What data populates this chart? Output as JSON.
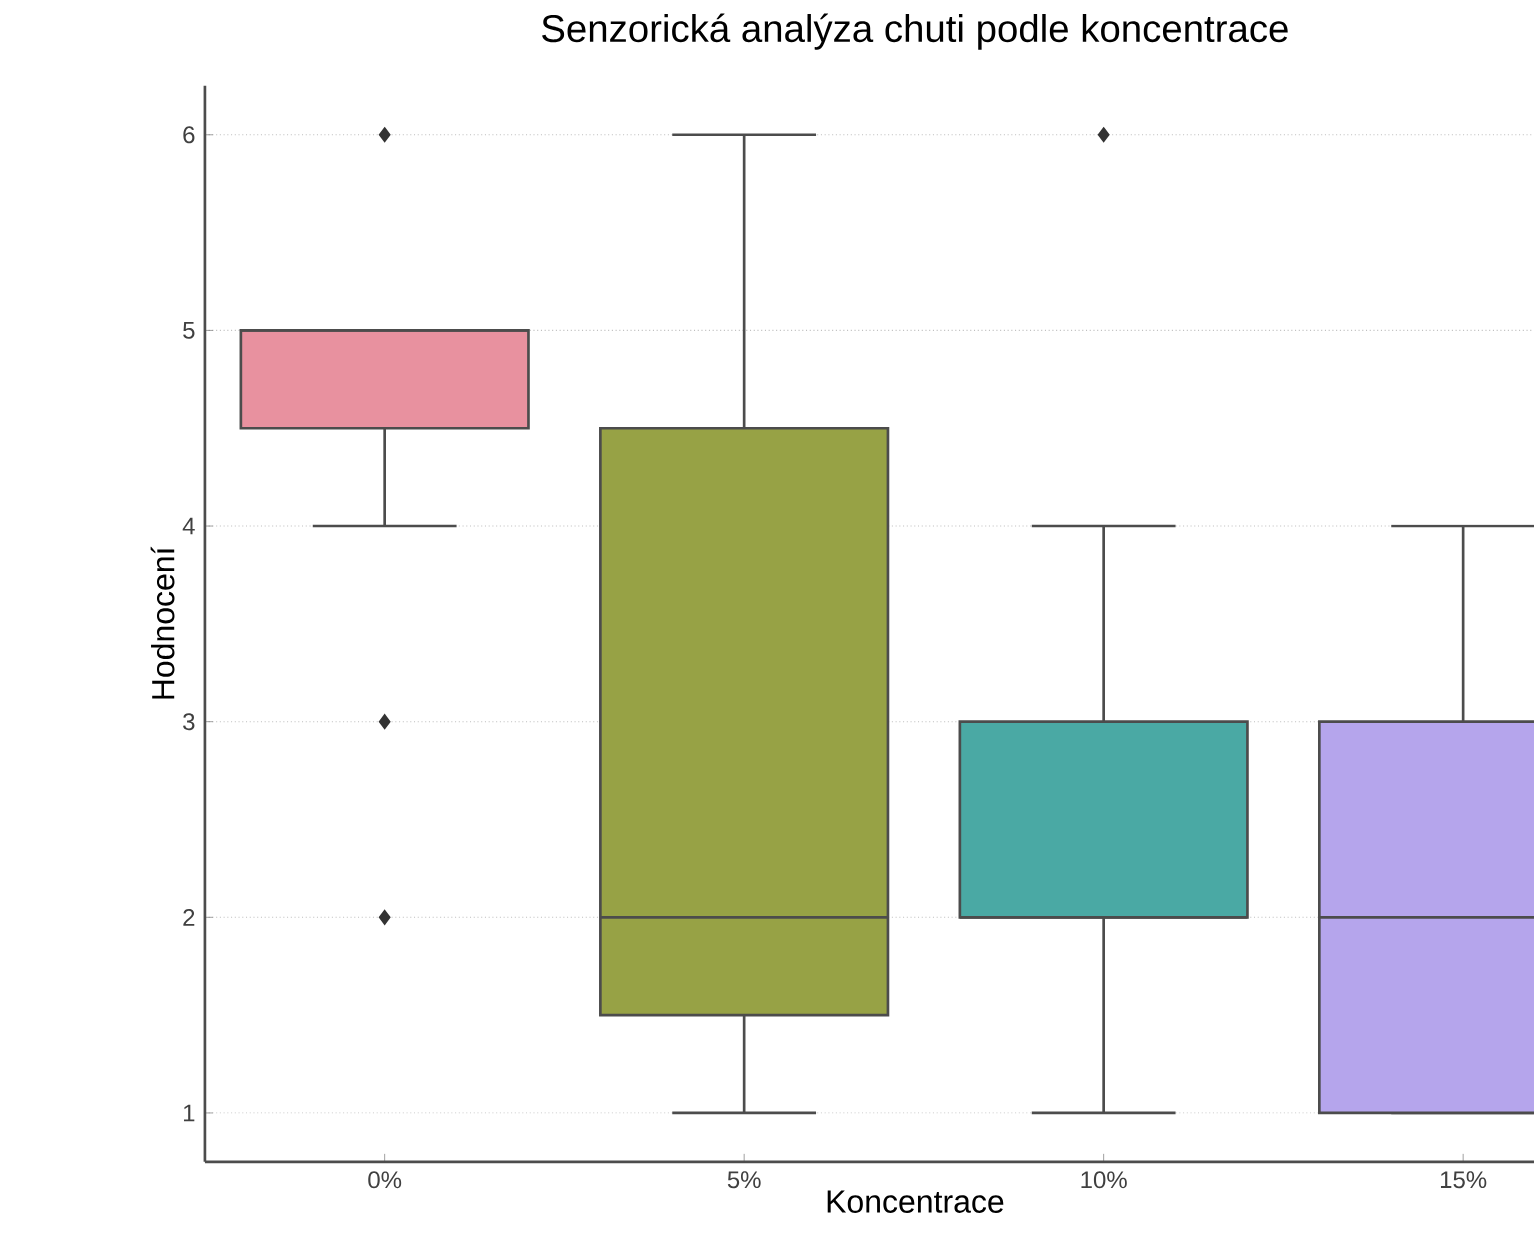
{
  "chart_data": {
    "type": "box",
    "title": "Senzorická analýza chuti podle koncentrace",
    "xlabel": "Koncentrace",
    "ylabel": "Hodnocení",
    "categories": [
      "0%",
      "5%",
      "10%",
      "15%"
    ],
    "colors": [
      "#e8919f",
      "#97a245",
      "#4aa9a4",
      "#b5a5ec"
    ],
    "boxes": [
      {
        "low": 4,
        "q1": 4.5,
        "median": 5,
        "q3": 5,
        "high": 5,
        "outliers": [
          6,
          3,
          2
        ]
      },
      {
        "low": 1,
        "q1": 1.5,
        "median": 2,
        "q3": 4.5,
        "high": 6
      },
      {
        "low": 1,
        "q1": 2,
        "median": 2,
        "q3": 3,
        "high": 4,
        "outliers": [
          6
        ]
      },
      {
        "low": 1,
        "q1": 1,
        "median": 2,
        "q3": 3,
        "high": 4
      }
    ],
    "ylim": [
      0.75,
      6.25
    ],
    "yticks": [
      1,
      2,
      3,
      4,
      5,
      6
    ],
    "grid": "y"
  }
}
